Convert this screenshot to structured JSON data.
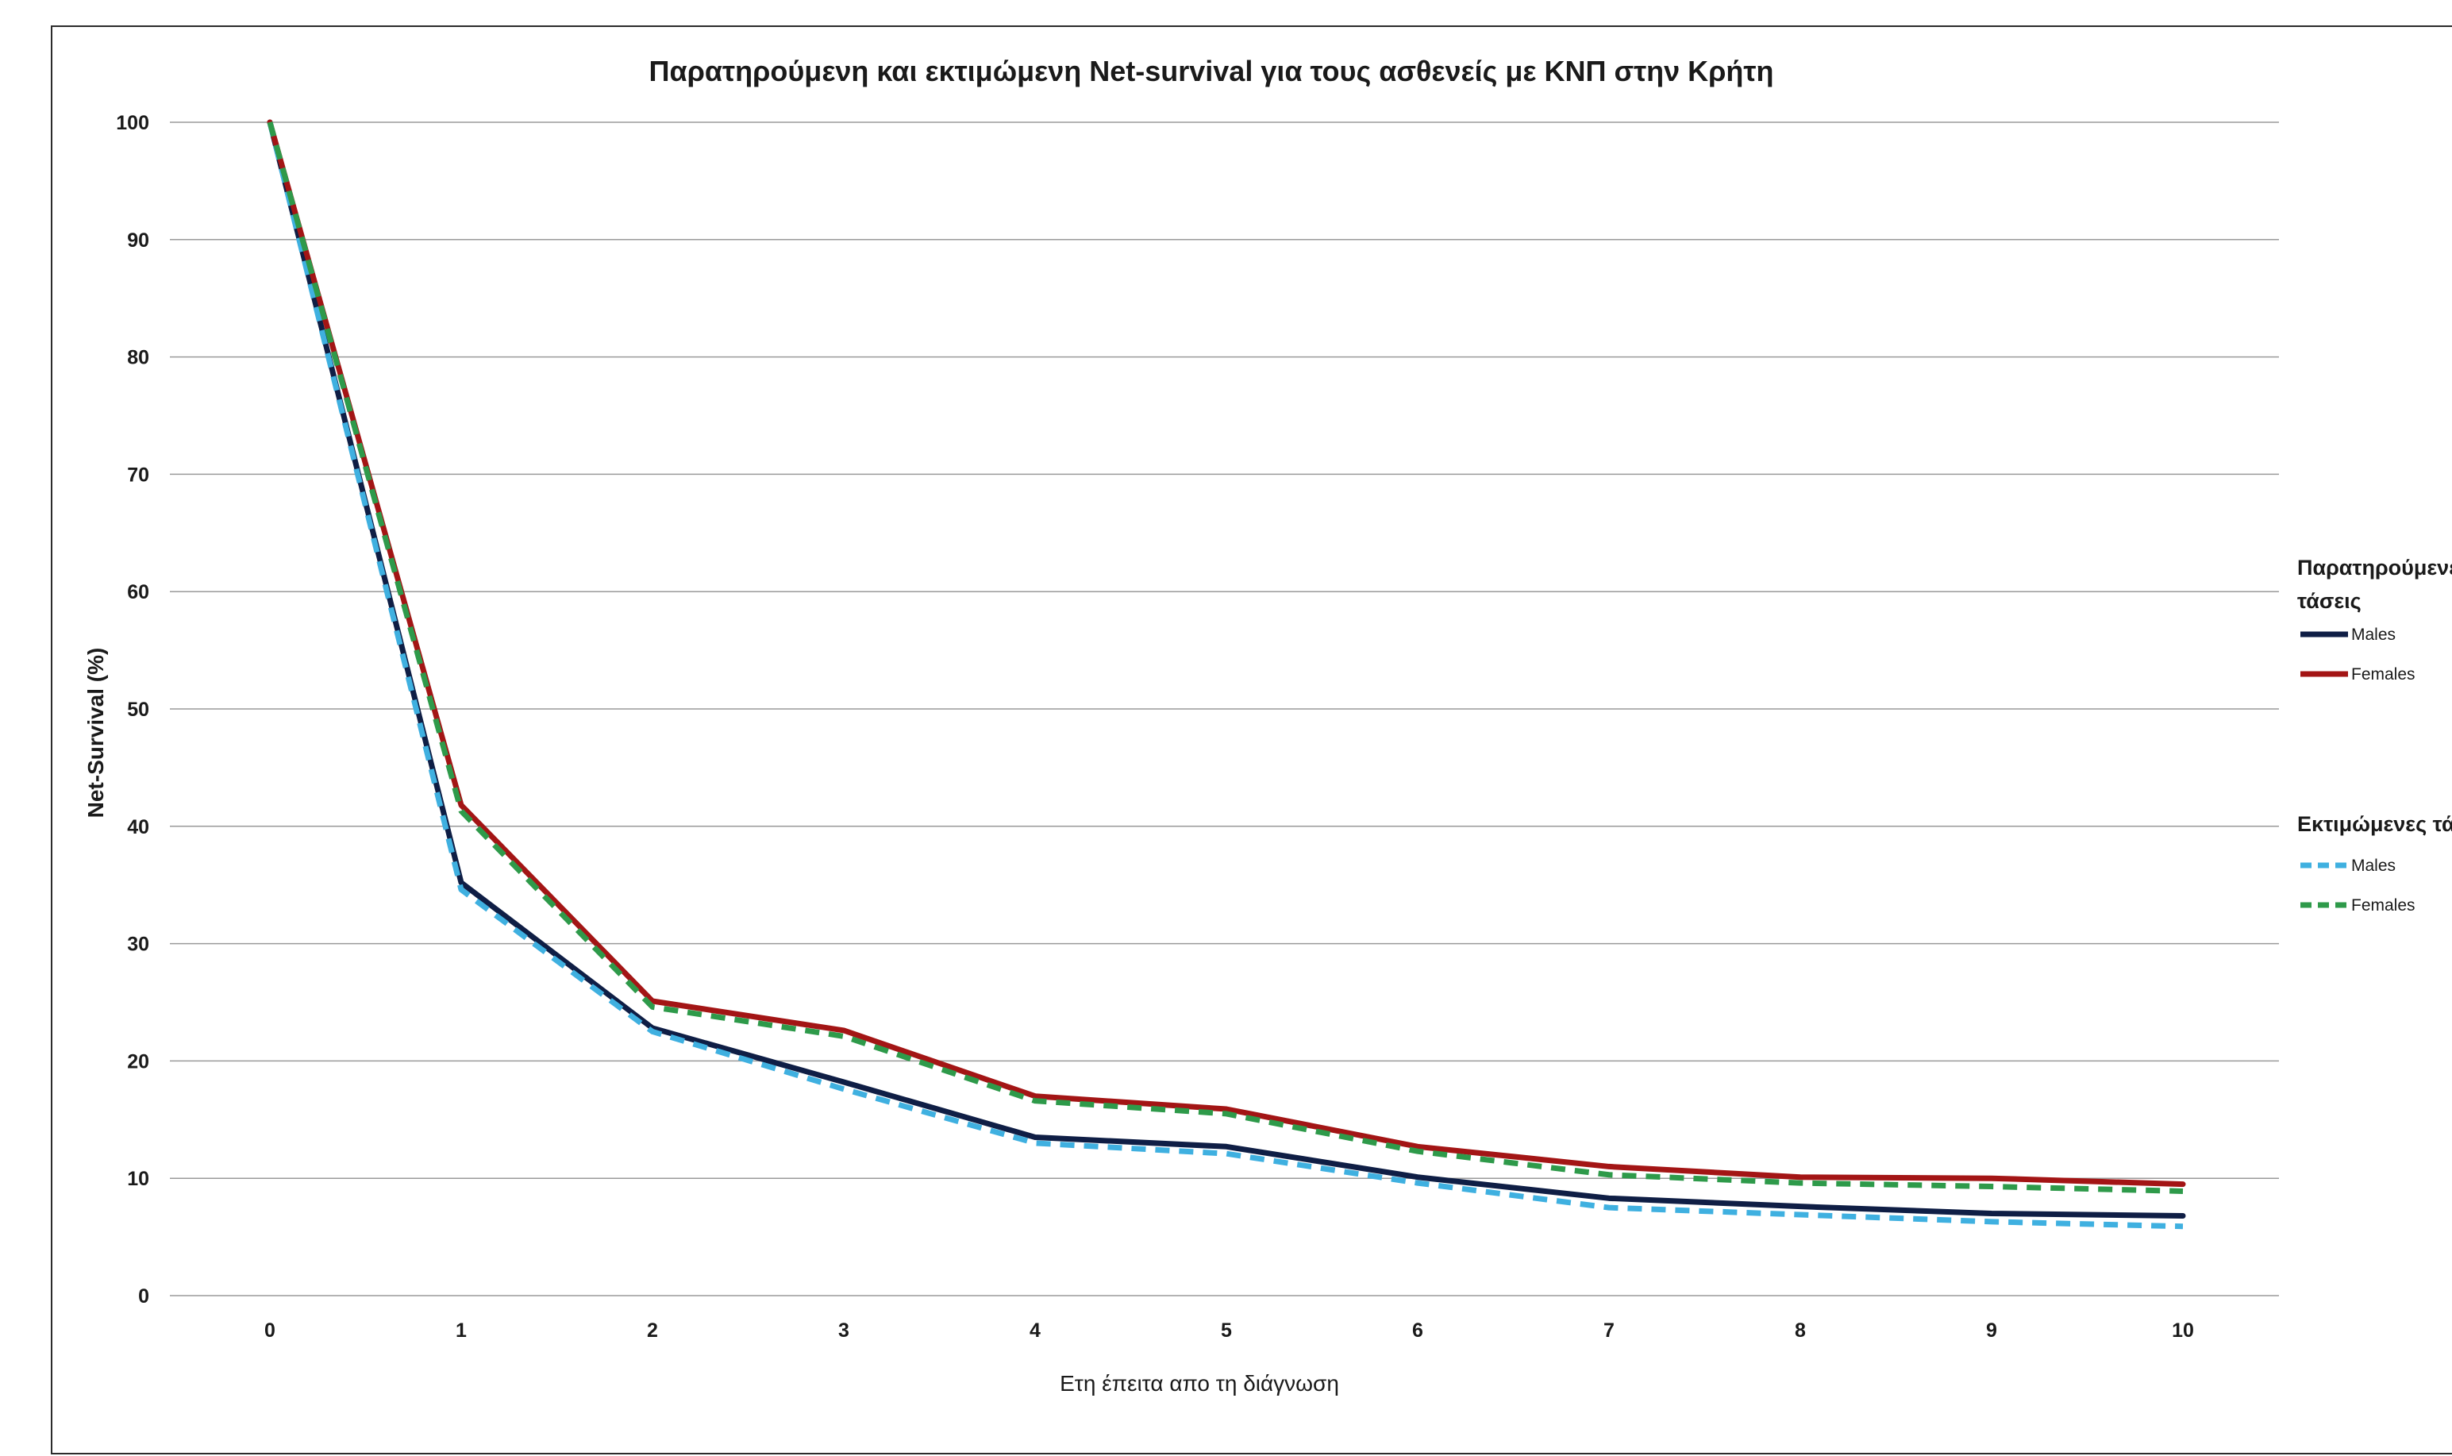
{
  "chart_data": {
    "type": "line",
    "title": "Παρατηρούμενη και εκτιμώμενη Net-survival για τους ασθενείς με ΚΝΠ στην Κρήτη",
    "xlabel": "Ετη έπειτα απο τη διάγνωση",
    "ylabel": "Net-Survival (%)",
    "x": [
      0,
      1,
      2,
      3,
      4,
      5,
      6,
      7,
      8,
      9,
      10
    ],
    "xticks": [
      "0",
      "1",
      "2",
      "3",
      "4",
      "5",
      "6",
      "7",
      "8",
      "9",
      "10"
    ],
    "yticks": [
      "0",
      "10",
      "20",
      "30",
      "40",
      "50",
      "60",
      "70",
      "80",
      "90",
      "100"
    ],
    "ylim": [
      0,
      100
    ],
    "grid": "horizontal",
    "legend_position": "right",
    "legend_groups": [
      {
        "title_lines": [
          "Παρατηρούμενες",
          "τάσεις"
        ],
        "series_index": [
          0,
          1
        ]
      },
      {
        "title_lines": [
          "Εκτιμώμενες τάσεις"
        ],
        "series_index": [
          2,
          3
        ]
      }
    ],
    "series": [
      {
        "name": "Males",
        "group": "observed",
        "color": "#0f1e45",
        "dash": "solid",
        "values": [
          100,
          35.2,
          22.8,
          18.2,
          13.5,
          12.7,
          10.1,
          8.3,
          7.6,
          7.0,
          6.8
        ]
      },
      {
        "name": "Females",
        "group": "observed",
        "color": "#a31515",
        "dash": "solid",
        "values": [
          100,
          41.8,
          25.1,
          22.6,
          17.0,
          15.9,
          12.7,
          11.0,
          10.1,
          10.0,
          9.5
        ]
      },
      {
        "name": "Males",
        "group": "estimated",
        "color": "#3fb0e0",
        "dash": "dashed",
        "values": [
          100,
          34.6,
          22.5,
          17.6,
          13.0,
          12.1,
          9.6,
          7.5,
          6.9,
          6.3,
          5.9
        ]
      },
      {
        "name": "Females",
        "group": "estimated",
        "color": "#2e9a4a",
        "dash": "dashed",
        "values": [
          100,
          41.3,
          24.6,
          22.1,
          16.6,
          15.5,
          12.3,
          10.3,
          9.6,
          9.3,
          8.9
        ]
      }
    ]
  }
}
